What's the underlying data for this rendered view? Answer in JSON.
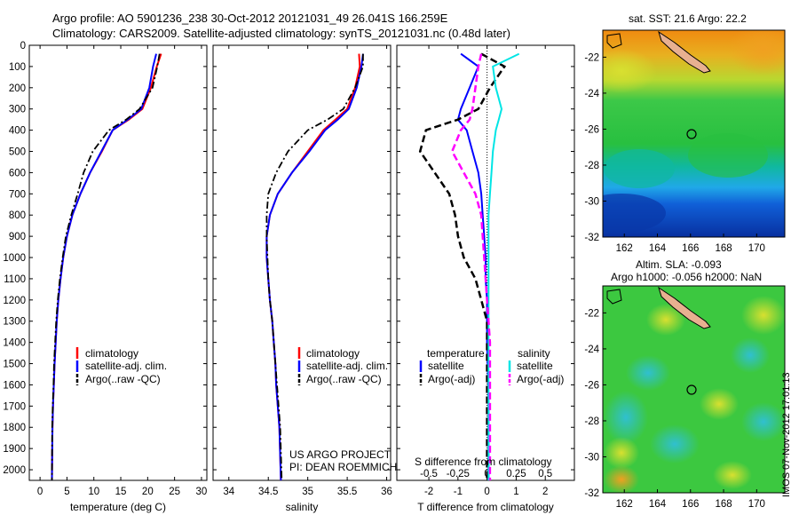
{
  "header": {
    "line1": "Argo profile: AO 5901236_238 30-Oct-2012 20121031_49 26.041S 166.259E",
    "line2": "Climatology: CARS2009. Satellite-adjusted climatology: synTS_20121031.nc (0.48d later)"
  },
  "colors": {
    "climatology": "#ff0000",
    "satellite": "#0000ff",
    "argo": "#000000",
    "cyan": "#00e5e5",
    "magenta": "#ff00ff"
  },
  "depth_ticks": [
    0,
    100,
    200,
    300,
    400,
    500,
    600,
    700,
    800,
    900,
    1000,
    1100,
    1200,
    1300,
    1400,
    1500,
    1600,
    1700,
    1800,
    1900,
    2000
  ],
  "panels": {
    "temperature": {
      "xlabel": "temperature (deg C)",
      "xticks": [
        0,
        5,
        10,
        15,
        20,
        25,
        30
      ],
      "legend": [
        "climatology",
        "satellite-adj. clim.",
        "Argo(..raw -QC)"
      ]
    },
    "salinity": {
      "xlabel": "salinity",
      "xticks": [
        "34",
        "34.5",
        "35",
        "35.5",
        "36"
      ],
      "legend": [
        "climatology",
        "satellite-adj. clim.",
        "Argo(..raw -QC)"
      ],
      "project_line1": "US ARGO PROJECT",
      "project_line2": "PI: DEAN ROEMMICH"
    },
    "difference": {
      "s_label": "S difference from climatology",
      "t_label": "T difference from climatology",
      "s_ticks": [
        "-0.5",
        "-0.25",
        "0",
        "0.25",
        "0.5"
      ],
      "t_ticks": [
        "-2",
        "-1",
        "0",
        "1",
        "2"
      ],
      "legend_temp_header": "temperature",
      "legend_sal_header": "salinity",
      "legend_temp": [
        "satellite",
        "Argo(-adj)"
      ],
      "legend_sal": [
        "satellite",
        "Argo(-adj)"
      ]
    }
  },
  "maps": {
    "top_title": "sat. SST: 21.6 Argo: 22.2",
    "bottom_title1": "Altim. SLA: -0.093",
    "bottom_title2": "Argo h1000: -0.056 h2000: NaN",
    "lon_ticks": [
      "162",
      "164",
      "166",
      "168",
      "170"
    ],
    "lat_ticks": [
      "-22",
      "-24",
      "-26",
      "-28",
      "-30",
      "-32"
    ]
  },
  "stamp": "IMOS 07-Nov-2012 17:01:13",
  "chart_data": [
    {
      "type": "line",
      "title": "",
      "xlabel": "temperature (deg C)",
      "ylabel": "",
      "xlim": [
        -2,
        31
      ],
      "ylim": [
        2050,
        0
      ],
      "series": [
        {
          "name": "climatology",
          "x": [
            22.5,
            21.7,
            20.6,
            19.0,
            16.5,
            13.5,
            11.5,
            9.3,
            7.5,
            6.0,
            5.0,
            4.3,
            3.8,
            3.4,
            3.1,
            2.9,
            2.7,
            2.55,
            2.4,
            2.3,
            2.2
          ],
          "y": [
            40,
            100,
            200,
            300,
            350,
            400,
            500,
            600,
            700,
            800,
            900,
            1000,
            1100,
            1200,
            1300,
            1400,
            1500,
            1600,
            1700,
            1800,
            2050
          ]
        },
        {
          "name": "satellite-adj. clim.",
          "x": [
            21.6,
            21.0,
            20.3,
            18.8,
            16.3,
            13.5,
            11.4,
            9.3,
            7.5,
            6.0,
            5.0,
            4.3,
            3.8,
            3.4,
            3.1,
            2.9,
            2.7,
            2.55,
            2.4,
            2.3,
            2.2
          ],
          "y": [
            40,
            100,
            200,
            300,
            350,
            400,
            500,
            600,
            700,
            800,
            900,
            1000,
            1100,
            1200,
            1300,
            1400,
            1500,
            1600,
            1700,
            1800,
            2050
          ]
        },
        {
          "name": "Argo(..raw -QC)",
          "x": [
            22.2,
            21.8,
            20.9,
            18.5,
            16.0,
            12.8,
            9.8,
            8.1,
            7.0,
            5.8,
            4.8,
            4.2,
            3.7,
            3.3,
            3.0,
            2.8,
            2.6,
            2.5,
            2.35,
            2.25,
            2.2
          ],
          "y": [
            40,
            100,
            200,
            300,
            350,
            400,
            500,
            600,
            700,
            800,
            900,
            1000,
            1100,
            1200,
            1300,
            1400,
            1500,
            1600,
            1700,
            1800,
            2050
          ]
        }
      ]
    },
    {
      "type": "line",
      "title": "",
      "xlabel": "salinity",
      "ylabel": "",
      "xlim": [
        33.8,
        36.05
      ],
      "ylim": [
        2050,
        0
      ],
      "series": [
        {
          "name": "climatology",
          "x": [
            35.65,
            35.66,
            35.6,
            35.5,
            35.35,
            35.2,
            35.0,
            34.8,
            34.62,
            34.52,
            34.48,
            34.48,
            34.5,
            34.52,
            34.55,
            34.57,
            34.59,
            34.6,
            34.62,
            34.64,
            34.66
          ],
          "y": [
            40,
            100,
            200,
            300,
            350,
            400,
            500,
            600,
            700,
            800,
            900,
            1000,
            1100,
            1200,
            1300,
            1400,
            1500,
            1600,
            1700,
            1800,
            2050
          ]
        },
        {
          "name": "satellite-adj. clim.",
          "x": [
            35.7,
            35.68,
            35.62,
            35.52,
            35.38,
            35.22,
            35.02,
            34.8,
            34.62,
            34.52,
            34.48,
            34.48,
            34.5,
            34.52,
            34.55,
            34.57,
            34.59,
            34.6,
            34.62,
            34.64,
            34.66
          ],
          "y": [
            40,
            100,
            200,
            300,
            350,
            400,
            500,
            600,
            700,
            800,
            900,
            1000,
            1100,
            1200,
            1300,
            1400,
            1500,
            1600,
            1700,
            1800,
            2050
          ]
        },
        {
          "name": "Argo(..raw -QC)",
          "x": [
            35.7,
            35.7,
            35.6,
            35.45,
            35.25,
            35.0,
            34.75,
            34.6,
            34.5,
            34.48,
            34.48,
            34.49,
            34.5,
            34.52,
            34.55,
            34.57,
            34.59,
            34.61,
            34.63,
            34.65,
            34.67
          ],
          "y": [
            40,
            100,
            200,
            300,
            350,
            400,
            500,
            600,
            700,
            800,
            900,
            1000,
            1100,
            1200,
            1300,
            1400,
            1500,
            1600,
            1700,
            1800,
            2050
          ]
        }
      ]
    },
    {
      "type": "line",
      "title": "",
      "xlabel": "T difference from climatology",
      "ylabel": "",
      "xlim": [
        -3.1,
        3.0
      ],
      "ylim": [
        2050,
        0
      ],
      "series": [
        {
          "name": "temperature satellite",
          "x": [
            -0.9,
            -0.3,
            -0.6,
            -0.9,
            -1.0,
            -0.7,
            -0.5,
            -0.3,
            -0.2,
            -0.15,
            -0.1,
            -0.05,
            -0.05,
            0,
            0,
            0,
            0.02,
            0.04,
            0.05,
            0.05,
            0.05
          ],
          "y": [
            40,
            100,
            200,
            300,
            350,
            400,
            500,
            600,
            700,
            800,
            900,
            1000,
            1100,
            1200,
            1300,
            1400,
            1500,
            1600,
            1700,
            1800,
            2050
          ]
        },
        {
          "name": "temperature Argo(-adj)",
          "x": [
            -0.2,
            0.6,
            0.1,
            -0.3,
            -1.0,
            -2.1,
            -2.3,
            -1.8,
            -1.3,
            -1.1,
            -1.0,
            -0.8,
            -0.4,
            -0.2,
            0,
            0,
            0,
            0,
            0,
            0,
            0
          ],
          "y": [
            40,
            100,
            200,
            300,
            350,
            400,
            500,
            600,
            700,
            800,
            900,
            1000,
            1100,
            1200,
            1300,
            1400,
            1500,
            1600,
            1700,
            1800,
            2050
          ]
        },
        {
          "name": "salinity satellite",
          "x": [
            1.1,
            0.2,
            0.3,
            0.5,
            0.4,
            0.3,
            0.2,
            0.15,
            0.1,
            0.05,
            0.05,
            0.05,
            0.05,
            0.05,
            0.05,
            0.05,
            0.05,
            0.05,
            0.05,
            0.05,
            0.05
          ],
          "y": [
            40,
            100,
            200,
            300,
            350,
            400,
            500,
            600,
            700,
            800,
            900,
            1000,
            1100,
            1200,
            1300,
            1400,
            1500,
            1600,
            1700,
            1800,
            2050
          ]
        },
        {
          "name": "salinity Argo(-adj)",
          "x": [
            -0.2,
            -0.3,
            -0.4,
            -0.5,
            -0.6,
            -0.9,
            -1.2,
            -0.8,
            -0.4,
            -0.2,
            -0.15,
            -0.1,
            -0.05,
            0,
            0.05,
            0.1,
            0.1,
            0.1,
            0.1,
            0.1,
            0.1
          ],
          "y": [
            40,
            100,
            200,
            300,
            350,
            400,
            500,
            600,
            700,
            800,
            900,
            1000,
            1100,
            1200,
            1300,
            1400,
            1500,
            1600,
            1700,
            1800,
            2050
          ]
        }
      ]
    },
    {
      "type": "heatmap",
      "title": "sat. SST: 21.6 Argo: 22.2",
      "xlim": [
        160.7,
        171.7
      ],
      "ylim": [
        -32,
        -20.5
      ],
      "marker": [
        166.26,
        -26.04
      ]
    },
    {
      "type": "heatmap",
      "title": "Altim. SLA: -0.093",
      "xlim": [
        160.7,
        171.7
      ],
      "ylim": [
        -32,
        -20.5
      ],
      "marker": [
        166.26,
        -26.04
      ]
    }
  ]
}
